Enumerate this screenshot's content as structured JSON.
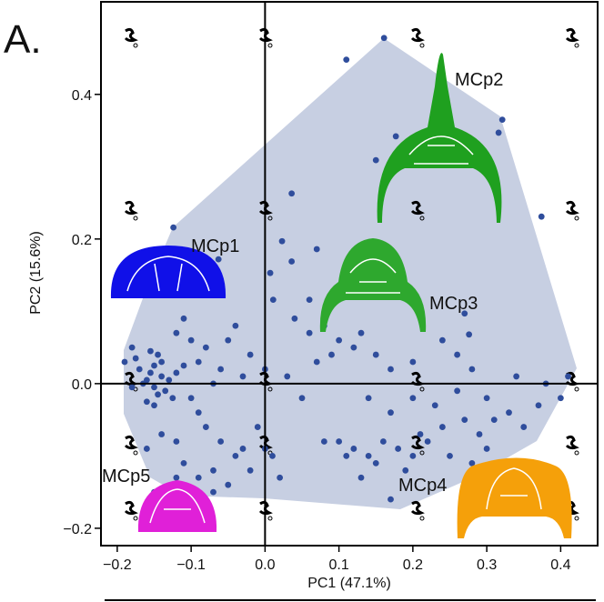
{
  "chart_data": {
    "type": "scatter",
    "x_label": "PC1 (47.1%)",
    "y_label": "PC2 (15.6%)",
    "annotations": [
      "A.",
      "MCp1",
      "MCp2",
      "MCp3",
      "MCp4",
      "MCp5"
    ],
    "color": "#2f4d9c",
    "xlim": [
      -0.222,
      0.45
    ],
    "ylim": [
      -0.224,
      0.528
    ],
    "xticks": [
      {
        "value": -0.2,
        "label": "−0.2"
      },
      {
        "value": -0.1,
        "label": "−0.1"
      },
      {
        "value": 0,
        "label": "0.0"
      },
      0.1,
      0.2,
      0.3,
      0.4
    ],
    "yticks": [
      {
        "value": -0.2,
        "label": "−0.2"
      },
      {
        "value": 0,
        "label": "0.0"
      },
      0.2,
      0.4
    ],
    "x": [
      -0.16,
      -0.15,
      -0.14,
      -0.155,
      -0.145,
      -0.165,
      -0.135,
      -0.15,
      -0.17,
      -0.13,
      -0.16,
      -0.14,
      -0.18,
      -0.12,
      -0.15,
      -0.175,
      -0.125,
      -0.145,
      -0.155,
      -0.11,
      -0.19,
      -0.18,
      -0.1,
      -0.09,
      -0.08,
      -0.07,
      -0.06,
      -0.05,
      -0.04,
      -0.11,
      -0.12,
      -0.1,
      -0.09,
      -0.08,
      -0.06,
      -0.12,
      -0.14,
      -0.11,
      -0.07,
      -0.04,
      -0.02,
      -0.03,
      0.0,
      0.01,
      -0.05,
      -0.09,
      -0.16,
      -0.02,
      0.0,
      -0.03,
      0.161,
      0.11,
      0.321,
      0.177,
      0.15,
      0.316,
      0.036,
      0.374,
      -0.124,
      0.07,
      0.007,
      0.036,
      0.023,
      -0.063,
      0.06,
      0.011,
      0.27,
      0.276,
      0.196,
      0.04,
      0.06,
      0.08,
      0.1,
      0.12,
      0.13,
      0.09,
      0.07,
      0.15,
      0.17,
      0.2,
      0.24,
      0.26,
      0.28,
      0.05,
      0.03,
      0.14,
      0.17,
      0.2,
      0.23,
      0.26,
      0.3,
      0.34,
      0.38,
      0.41,
      0.1,
      0.12,
      0.14,
      0.16,
      0.18,
      0.2,
      0.22,
      0.24,
      0.27,
      0.29,
      0.31,
      0.33,
      0.35,
      0.25,
      0.19,
      0.15,
      0.11,
      0.08,
      0.17,
      0.28,
      0.3,
      0.13,
      0.21,
      0.37,
      0.4,
      -0.01,
      0.02,
      -0.07,
      -0.15,
      -0.12
    ],
    "y": [
      0.005,
      -0.005,
      0.01,
      0.015,
      -0.015,
      0.0,
      -0.01,
      0.025,
      0.02,
      0.005,
      -0.025,
      0.03,
      -0.005,
      0.015,
      -0.03,
      0.035,
      -0.02,
      0.04,
      0.045,
      0.025,
      0.03,
      0.05,
      0.06,
      0.03,
      0.05,
      0.0,
      0.02,
      0.06,
      0.08,
      0.09,
      0.07,
      -0.02,
      -0.04,
      -0.06,
      -0.08,
      -0.08,
      -0.07,
      -0.11,
      -0.12,
      -0.1,
      -0.12,
      -0.09,
      -0.09,
      -0.1,
      -0.14,
      -0.13,
      -0.09,
      0.04,
      0.02,
      0.01,
      0.478,
      0.448,
      0.365,
      0.342,
      0.309,
      0.347,
      0.263,
      0.231,
      0.216,
      0.186,
      0.153,
      0.169,
      0.197,
      0.172,
      0.116,
      0.116,
      0.097,
      0.068,
      0.116,
      0.09,
      0.07,
      0.08,
      0.06,
      0.05,
      0.07,
      0.04,
      0.03,
      0.04,
      0.02,
      0.03,
      0.06,
      0.04,
      0.02,
      -0.02,
      0.01,
      -0.02,
      -0.04,
      -0.02,
      -0.03,
      -0.01,
      -0.02,
      0.01,
      0.0,
      0.01,
      -0.08,
      -0.09,
      -0.1,
      -0.08,
      -0.09,
      -0.1,
      -0.08,
      -0.06,
      -0.05,
      -0.07,
      -0.05,
      -0.04,
      -0.06,
      -0.1,
      -0.12,
      -0.11,
      -0.1,
      -0.08,
      -0.16,
      -0.11,
      -0.09,
      -0.13,
      -0.07,
      -0.03,
      -0.02,
      -0.06,
      -0.13,
      -0.15,
      -0.15,
      -0.13
    ]
  }
}
